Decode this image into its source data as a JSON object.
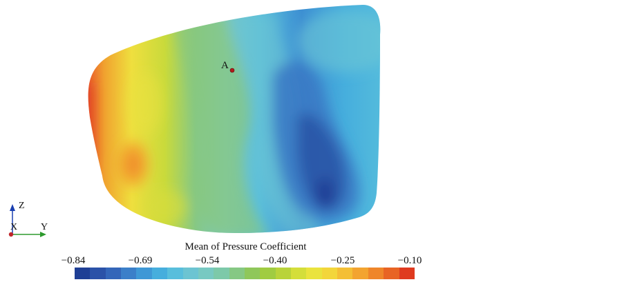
{
  "point_label": "A",
  "axes": {
    "z": "Z",
    "x": "X",
    "y": "Y"
  },
  "colorbar": {
    "title": "Mean of Pressure Coefficient",
    "ticks": [
      "−0.84",
      "−0.69",
      "−0.54",
      "−0.40",
      "−0.25",
      "−0.10"
    ],
    "colors": [
      "#1f3f95",
      "#2b52a8",
      "#3466b9",
      "#3b7fc9",
      "#3f98d6",
      "#46aedd",
      "#58bedc",
      "#6cc4d2",
      "#78c9c2",
      "#7dc9a9",
      "#86c884",
      "#8fc75a",
      "#a0cc41",
      "#b9d33a",
      "#d4de3a",
      "#eae33d",
      "#f3d63a",
      "#f4bf35",
      "#f3a430",
      "#ef862a",
      "#e86424",
      "#df3a1f"
    ]
  }
}
